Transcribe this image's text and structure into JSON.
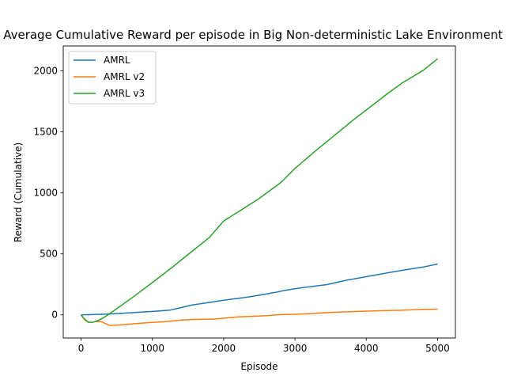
{
  "chart_data": {
    "type": "line",
    "title": "Average Cumulative Reward per episode in Big Non-deterministic Lake Environment",
    "xlabel": "Episode",
    "ylabel": "Reward (Cumulative)",
    "xlim": [
      -250,
      5250
    ],
    "ylim": [
      -190,
      2205
    ],
    "xticks": [
      0,
      1000,
      2000,
      3000,
      4000,
      5000
    ],
    "yticks": [
      0,
      500,
      1000,
      1500,
      2000
    ],
    "grid": false,
    "legend_position": "top-left",
    "series": [
      {
        "name": "AMRL",
        "color": "#1f77b4",
        "points": [
          [
            0,
            0
          ],
          [
            200,
            3
          ],
          [
            400,
            7
          ],
          [
            600,
            14
          ],
          [
            800,
            21
          ],
          [
            1000,
            28
          ],
          [
            1250,
            39
          ],
          [
            1400,
            59
          ],
          [
            1550,
            80
          ],
          [
            1800,
            102
          ],
          [
            2000,
            120
          ],
          [
            2350,
            147
          ],
          [
            2700,
            182
          ],
          [
            2900,
            205
          ],
          [
            3100,
            223
          ],
          [
            3450,
            248
          ],
          [
            3700,
            281
          ],
          [
            4000,
            313
          ],
          [
            4300,
            345
          ],
          [
            4500,
            365
          ],
          [
            4800,
            392
          ],
          [
            5000,
            417
          ]
        ]
      },
      {
        "name": "AMRL v2",
        "color": "#ff7f0e",
        "points": [
          [
            0,
            0
          ],
          [
            50,
            -40
          ],
          [
            100,
            -60
          ],
          [
            150,
            -62
          ],
          [
            200,
            -55
          ],
          [
            280,
            -55
          ],
          [
            400,
            -87
          ],
          [
            550,
            -82
          ],
          [
            800,
            -70
          ],
          [
            1000,
            -62
          ],
          [
            1200,
            -55
          ],
          [
            1400,
            -42
          ],
          [
            1550,
            -38
          ],
          [
            1850,
            -35
          ],
          [
            2000,
            -28
          ],
          [
            2200,
            -17
          ],
          [
            2400,
            -12
          ],
          [
            2600,
            -7
          ],
          [
            2800,
            2
          ],
          [
            3000,
            5
          ],
          [
            3200,
            10
          ],
          [
            3400,
            17
          ],
          [
            3500,
            20
          ],
          [
            3800,
            27
          ],
          [
            4000,
            31
          ],
          [
            4300,
            35
          ],
          [
            4500,
            38
          ],
          [
            4800,
            45
          ],
          [
            5000,
            47
          ]
        ]
      },
      {
        "name": "AMRL v3",
        "color": "#2ca02c",
        "points": [
          [
            0,
            0
          ],
          [
            50,
            -35
          ],
          [
            100,
            -60
          ],
          [
            150,
            -62
          ],
          [
            200,
            -55
          ],
          [
            260,
            -40
          ],
          [
            350,
            -10
          ],
          [
            500,
            50
          ],
          [
            750,
            155
          ],
          [
            1000,
            265
          ],
          [
            1300,
            400
          ],
          [
            1500,
            495
          ],
          [
            1800,
            635
          ],
          [
            2000,
            770
          ],
          [
            2300,
            880
          ],
          [
            2500,
            955
          ],
          [
            2800,
            1085
          ],
          [
            3000,
            1200
          ],
          [
            3300,
            1350
          ],
          [
            3500,
            1445
          ],
          [
            3800,
            1590
          ],
          [
            4000,
            1680
          ],
          [
            4300,
            1815
          ],
          [
            4500,
            1900
          ],
          [
            4800,
            2005
          ],
          [
            5000,
            2100
          ]
        ]
      }
    ]
  }
}
